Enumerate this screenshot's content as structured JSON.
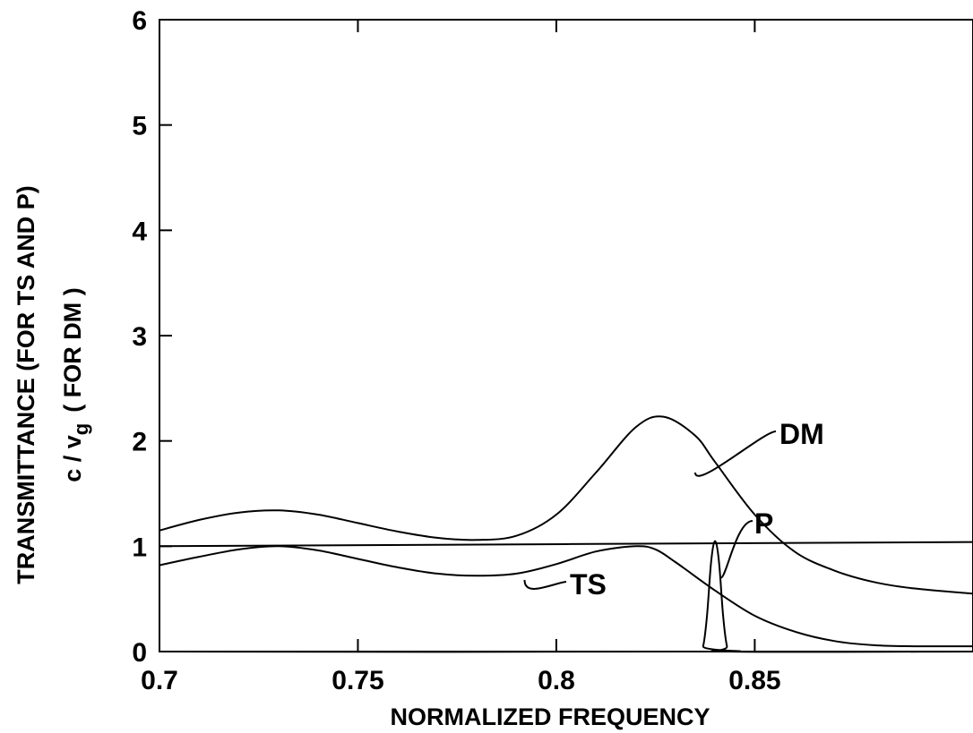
{
  "chart_data": {
    "type": "line",
    "xlabel": "NORMALIZED FREQUENCY",
    "ylabel_line1": "TRANSMITTANCE (FOR TS AND P)",
    "ylabel_line2_main": "c / v",
    "ylabel_line2_sub": "g",
    "ylabel_line2_suffix": "( FOR DM )",
    "xlim": [
      0.7,
      0.905
    ],
    "ylim": [
      0,
      6
    ],
    "x_ticks": [
      0.7,
      0.75,
      0.8,
      0.85
    ],
    "x_tick_labels": [
      "0.7",
      "0.75",
      "0.8",
      "0.85"
    ],
    "y_ticks": [
      0,
      1,
      2,
      3,
      4,
      5,
      6
    ],
    "y_tick_labels": [
      "0",
      "1",
      "2",
      "3",
      "4",
      "5",
      "6"
    ],
    "grid": false,
    "series": [
      {
        "name": "DM",
        "x": [
          0.7,
          0.71,
          0.72,
          0.73,
          0.74,
          0.75,
          0.76,
          0.77,
          0.78,
          0.79,
          0.8,
          0.81,
          0.82,
          0.827,
          0.835,
          0.84,
          0.85,
          0.86,
          0.87,
          0.88,
          0.89,
          0.905
        ],
        "y": [
          1.15,
          1.25,
          1.32,
          1.34,
          1.3,
          1.22,
          1.14,
          1.08,
          1.06,
          1.1,
          1.3,
          1.7,
          2.13,
          2.23,
          2.05,
          1.8,
          1.3,
          0.95,
          0.77,
          0.66,
          0.6,
          0.55
        ]
      },
      {
        "name": "TS",
        "x": [
          0.7,
          0.71,
          0.72,
          0.73,
          0.74,
          0.75,
          0.76,
          0.77,
          0.78,
          0.79,
          0.8,
          0.81,
          0.82,
          0.825,
          0.83,
          0.84,
          0.85,
          0.86,
          0.87,
          0.88,
          0.89,
          0.905
        ],
        "y": [
          0.82,
          0.9,
          0.97,
          1.0,
          0.96,
          0.88,
          0.8,
          0.74,
          0.72,
          0.74,
          0.83,
          0.95,
          1.0,
          0.97,
          0.85,
          0.58,
          0.34,
          0.19,
          0.1,
          0.06,
          0.05,
          0.05
        ]
      },
      {
        "name": "P",
        "x": [
          0.7,
          0.836,
          0.837,
          0.838,
          0.839,
          0.84,
          0.841,
          0.842,
          0.843,
          0.844,
          0.905
        ],
        "y": [
          0.0,
          0.0,
          0.05,
          0.35,
          0.85,
          1.05,
          0.85,
          0.35,
          0.05,
          0.0,
          0.0
        ]
      },
      {
        "name": "",
        "x": [
          0.7,
          0.905
        ],
        "y": [
          1.0,
          1.04
        ]
      }
    ]
  }
}
